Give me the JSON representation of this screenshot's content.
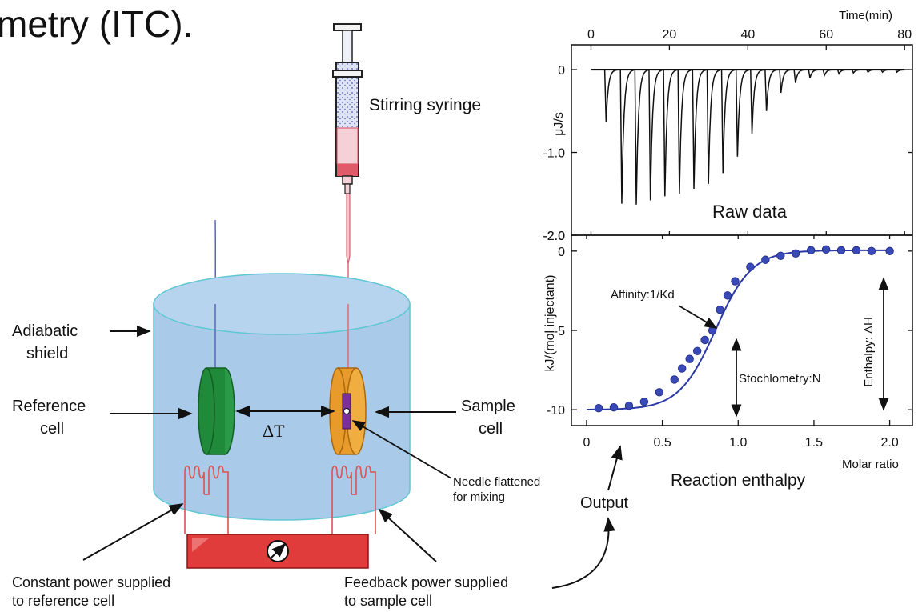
{
  "title_fragment": "metry (ITC).",
  "labels": {
    "stirring_syringe": "Stirring syringe",
    "adiabatic_shield_1": "Adiabatic",
    "adiabatic_shield_2": "shield",
    "reference_cell_1": "Reference",
    "reference_cell_2": "cell",
    "sample_cell_1": "Sample",
    "sample_cell_2": "cell",
    "delta_t": "ΔT",
    "needle_1": "Needle flattened",
    "needle_2": "for mixing",
    "constant_power_1": "Constant power supplied",
    "constant_power_2": "to reference cell",
    "feedback_power_1": "Feedback power supplied",
    "feedback_power_2": "to sample cell",
    "output": "Output",
    "raw_data": "Raw data",
    "reaction_enthalpy": "Reaction enthalpy",
    "affinity": "Affinity:1/Kd",
    "stoichiometry": "Stochlometry:N",
    "enthalpy": "Enthalpy: ΔH"
  },
  "colors": {
    "shield": "#a9cbe9",
    "shield_edge": "#5fc7d4",
    "reference_cell": "#1e8a3a",
    "sample_cell": "#e89a2a",
    "heater": "#e03c3c",
    "fit_line": "#2b3aa6",
    "point": "#3a49b8"
  },
  "chart_data": [
    {
      "type": "line",
      "name": "raw",
      "xlabel": "Time(min)",
      "ylabel": "μJ/s",
      "xlim": [
        -5,
        82
      ],
      "ylim": [
        -2.0,
        0.3
      ],
      "xticks": [
        "0",
        "20",
        "40",
        "60",
        "80"
      ],
      "yticks": [
        "0",
        "-1.0",
        "-2.0"
      ],
      "xtick_values": [
        0,
        20,
        40,
        60,
        80
      ],
      "ytick_values": [
        0,
        -1.0,
        -2.0
      ],
      "injection_times": [
        3.5,
        7.5,
        11.2,
        14.8,
        18.5,
        22.2,
        25.9,
        29.6,
        33.3,
        37.0,
        40.7,
        44.4,
        48.1,
        51.8,
        55.5,
        59.2,
        62.9,
        66.6,
        70.3,
        74.0,
        77.7
      ],
      "peak_values": [
        -0.63,
        -1.62,
        -1.63,
        -1.58,
        -1.53,
        -1.5,
        -1.44,
        -1.38,
        -1.25,
        -1.05,
        -0.78,
        -0.5,
        -0.28,
        -0.16,
        -0.1,
        -0.07,
        -0.05,
        -0.04,
        -0.03,
        -0.03,
        -0.03
      ]
    },
    {
      "type": "scatter",
      "name": "isotherm",
      "xlabel": "Molar ratio",
      "ylabel": "kJ/(mol injectant)",
      "xlim": [
        -0.1,
        2.15
      ],
      "ylim": [
        -11,
        1
      ],
      "xticks": [
        "0",
        "0.5",
        "1.0",
        "1.5",
        "2.0"
      ],
      "yticks": [
        "0",
        "-5",
        "-10"
      ],
      "xtick_values": [
        0,
        0.5,
        1.0,
        1.5,
        2.0
      ],
      "ytick_values": [
        0,
        -5,
        -10
      ],
      "x": [
        0.08,
        0.18,
        0.28,
        0.38,
        0.48,
        0.58,
        0.63,
        0.68,
        0.73,
        0.78,
        0.83,
        0.88,
        0.93,
        0.98,
        1.08,
        1.18,
        1.28,
        1.38,
        1.48,
        1.58,
        1.68,
        1.78,
        1.88,
        2.0
      ],
      "y": [
        -9.9,
        -9.85,
        -9.75,
        -9.5,
        -8.9,
        -8.1,
        -7.4,
        -6.8,
        -6.3,
        -5.6,
        -5.0,
        -3.7,
        -2.8,
        -1.9,
        -1.0,
        -0.55,
        -0.3,
        -0.15,
        0.05,
        0.1,
        0.05,
        0.05,
        0.0,
        0.0
      ],
      "fit_midpoint": 0.85,
      "fit_width": 0.12,
      "fit_bottom": -10,
      "fit_top": 0.05
    }
  ]
}
